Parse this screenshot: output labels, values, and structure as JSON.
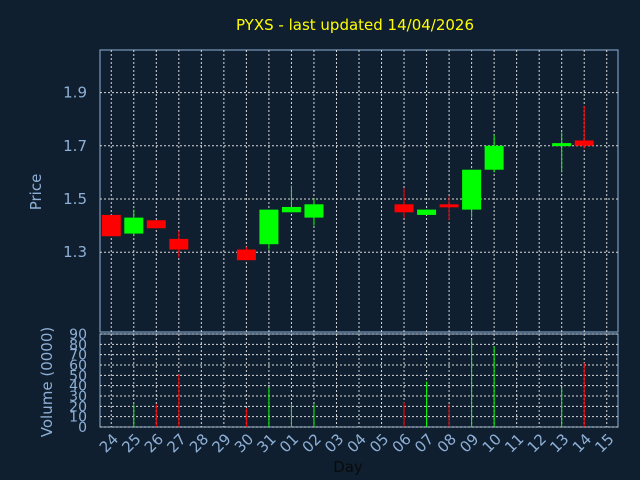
{
  "chart_data": {
    "type": "candlestick",
    "title": "PYXS - last updated 14/04/2026",
    "xlabel": "Day",
    "colors": {
      "background": "#0f1f30",
      "plot_border": "#8fb0d6",
      "grid": "#d8d8d8",
      "up": "#00ff00",
      "down": "#ff0000",
      "title": "#ffff00",
      "axis_text": "#8fb0d6"
    },
    "price": {
      "ylabel": "Price",
      "ylim": [
        1.0,
        2.06
      ],
      "yticks": [
        1.3,
        1.5,
        1.7,
        1.9
      ],
      "ytick_labels": [
        "1.3",
        "1.5",
        "1.7",
        "1.9"
      ],
      "grid": true
    },
    "volume": {
      "ylabel": "Volume (0000)",
      "ylim": [
        0,
        90
      ],
      "yticks": [
        0,
        10,
        20,
        30,
        40,
        50,
        60,
        70,
        80,
        90
      ],
      "ytick_labels": [
        "0",
        "10",
        "20",
        "30",
        "40",
        "50",
        "60",
        "70",
        "80",
        "90"
      ],
      "grid": true
    },
    "x_labels": [
      "24",
      "25",
      "26",
      "27",
      "28",
      "29",
      "30",
      "31",
      "01",
      "02",
      "03",
      "04",
      "05",
      "06",
      "07",
      "08",
      "09",
      "10",
      "11",
      "12",
      "13",
      "14",
      "15"
    ],
    "x_start": 24,
    "candles": [
      {
        "date": "24",
        "open": 1.44,
        "high": 1.44,
        "low": 1.36,
        "close": 1.36,
        "volume": 0
      },
      {
        "date": "25",
        "open": 1.37,
        "high": 1.46,
        "low": 1.36,
        "close": 1.43,
        "volume": 22
      },
      {
        "date": "26",
        "open": 1.42,
        "high": 1.42,
        "low": 1.39,
        "close": 1.39,
        "volume": 22
      },
      {
        "date": "27",
        "open": 1.35,
        "high": 1.38,
        "low": 1.28,
        "close": 1.31,
        "volume": 51
      },
      {
        "date": "30",
        "open": 1.31,
        "high": 1.32,
        "low": 1.27,
        "close": 1.27,
        "volume": 18
      },
      {
        "date": "31",
        "open": 1.33,
        "high": 1.46,
        "low": 1.31,
        "close": 1.46,
        "volume": 38
      },
      {
        "date": "01",
        "open": 1.45,
        "high": 1.55,
        "low": 1.45,
        "close": 1.47,
        "volume": 22
      },
      {
        "date": "02",
        "open": 1.43,
        "high": 1.5,
        "low": 1.4,
        "close": 1.48,
        "volume": 22
      },
      {
        "date": "06",
        "open": 1.48,
        "high": 1.54,
        "low": 1.43,
        "close": 1.45,
        "volume": 24
      },
      {
        "date": "07",
        "open": 1.44,
        "high": 1.46,
        "low": 1.44,
        "close": 1.46,
        "volume": 44
      },
      {
        "date": "08",
        "open": 1.48,
        "high": 1.51,
        "low": 1.42,
        "close": 1.47,
        "volume": 22
      },
      {
        "date": "09",
        "open": 1.46,
        "high": 1.61,
        "low": 1.43,
        "close": 1.61,
        "volume": 85
      },
      {
        "date": "10",
        "open": 1.61,
        "high": 1.74,
        "low": 1.6,
        "close": 1.7,
        "volume": 78
      },
      {
        "date": "13",
        "open": 1.7,
        "high": 1.75,
        "low": 1.6,
        "close": 1.71,
        "volume": 38
      },
      {
        "date": "14",
        "open": 1.72,
        "high": 1.85,
        "low": 1.69,
        "close": 1.7,
        "volume": 62
      }
    ]
  }
}
